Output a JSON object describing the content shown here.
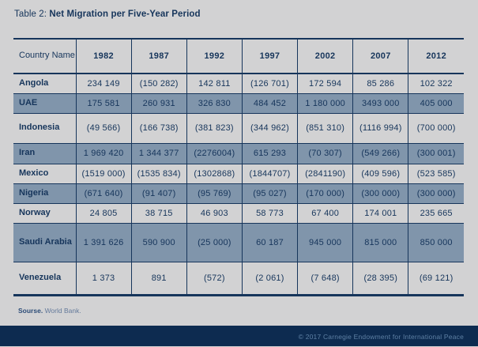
{
  "title": {
    "prefix": "Table 2: ",
    "text": "Net Migration per Five-Year Period"
  },
  "source": {
    "label": "Sourse.",
    "text": "World Bank."
  },
  "footer": {
    "copyright": "© 2017 Carnegie Endowment for International Peace"
  },
  "colors": {
    "background": "#d2d2d3",
    "navy_text_border": "#16355b",
    "row_blue": "#8095ab",
    "row_light": "#d2d2d3",
    "footer_bar": "#0d2b50",
    "footer_text": "#5e80a4"
  },
  "chart_data": {
    "type": "table",
    "title": "Net Migration per Five-Year Period",
    "columns": [
      "Country Name",
      "1982",
      "1987",
      "1992",
      "1997",
      "2002",
      "2007",
      "2012"
    ],
    "rows": [
      {
        "country": "Angola",
        "values": [
          "234 149",
          "(150 282)",
          "142 811",
          "(126 701)",
          "172 594",
          "85 286",
          "102 322"
        ]
      },
      {
        "country": "UAE",
        "values": [
          "175 581",
          "260 931",
          "326 830",
          "484 452",
          "1 180 000",
          "3493 000",
          "405 000"
        ]
      },
      {
        "country": "Indonesia",
        "values": [
          "(49 566)",
          "(166 738)",
          "(381 823)",
          "(344 962)",
          "(851 310)",
          "(1116 994)",
          "(700 000)"
        ]
      },
      {
        "country": "Iran",
        "values": [
          "1 969 420",
          "1 344 377",
          "(2276004)",
          "615 293",
          "(70 307)",
          "(549 266)",
          "(300 001)"
        ]
      },
      {
        "country": "Mexico",
        "values": [
          "(1519 000)",
          "(1535 834)",
          "(1302868)",
          "(1844707)",
          "(2841190)",
          "(409 596)",
          "(523 585)"
        ]
      },
      {
        "country": "Nigeria",
        "values": [
          "(671 640)",
          "(91 407)",
          "(95 769)",
          "(95 027)",
          "(170 000)",
          "(300 000)",
          "(300 000)"
        ]
      },
      {
        "country": "Norway",
        "values": [
          "24 805",
          "38 715",
          "46 903",
          "58 773",
          "67 400",
          "174 001",
          "235 665"
        ]
      },
      {
        "country": "Saudi Arabia",
        "values": [
          "1 391 626",
          "590 900",
          "(25 000)",
          "60 187",
          "945 000",
          "815 000",
          "850 000"
        ]
      },
      {
        "country": "Venezuela",
        "values": [
          "1 373",
          "891",
          "(572)",
          "(2 061)",
          "(7 648)",
          "(28 395)",
          "(69 121)"
        ]
      }
    ]
  }
}
